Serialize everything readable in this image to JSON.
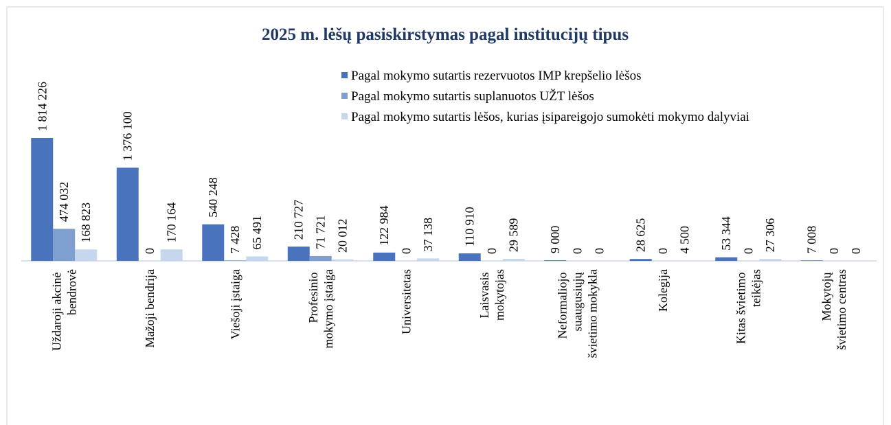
{
  "chart_data": {
    "type": "bar",
    "title": "2025 m. lėšų pasiskirstymas pagal institucijų tipus",
    "categories": [
      "Uždaroji akcinė bendrovė",
      "Mažoji bendrija",
      "Viešoji įstaiga",
      "Profesinio mokymo įstaiga",
      "Universitetas",
      "Laisvasis mokytojas",
      "Neformaliojo suaugusiųjų švietimo mokykla",
      "Kolegija",
      "Kitas švietimo teikėjas",
      "Mokytojų švietimo centras"
    ],
    "series": [
      {
        "name": "Pagal mokymo sutartis rezervuotos IMP krepšelio lėšos",
        "color": "#4a73bd",
        "values": [
          1814226,
          1376100,
          540248,
          210727,
          122984,
          110910,
          9000,
          28625,
          53344,
          7008
        ],
        "value_labels": [
          "1 814 226",
          "1 376 100",
          "540 248",
          "210 727",
          "122 984",
          "110 910",
          "9 000",
          "28 625",
          "53 344",
          "7 008"
        ]
      },
      {
        "name": "Pagal mokymo sutartis suplanuotos UŽT  lėšos",
        "color": "#7f9fd1",
        "values": [
          474032,
          0,
          7428,
          71721,
          0,
          0,
          0,
          0,
          0,
          0
        ],
        "value_labels": [
          "474 032",
          "0",
          "7 428",
          "71 721",
          "0",
          "0",
          "0",
          "0",
          "0",
          "0"
        ]
      },
      {
        "name": "Pagal mokymo sutartis lėšos, kurias įsipareigojo sumokėti mokymo dalyviai",
        "color": "#c6d6ef",
        "values": [
          168823,
          170164,
          65491,
          20012,
          37138,
          29589,
          0,
          4500,
          27306,
          0
        ],
        "value_labels": [
          "168 823",
          "170 164",
          "65 491",
          "20 012",
          "37 138",
          "29 589",
          "0",
          "4 500",
          "27 306",
          "0"
        ]
      }
    ],
    "legend": "top-right"
  }
}
